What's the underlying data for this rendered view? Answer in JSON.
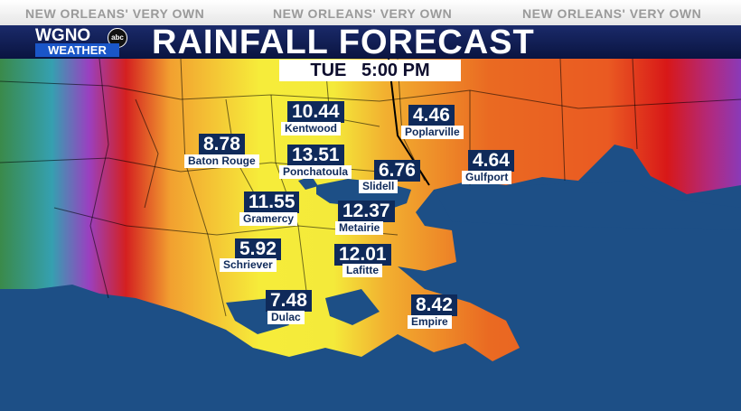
{
  "header": {
    "slogans": [
      "NEW ORLEANS' VERY OWN",
      "NEW ORLEANS' VERY OWN",
      "NEW ORLEANS' VERY OWN"
    ],
    "logo_top": "WGNO",
    "logo_network": "abc",
    "logo_bottom": "WEATHER",
    "title": "RAINFALL FORECAST"
  },
  "time": {
    "day": "TUE",
    "clock": "5:00 PM"
  },
  "colors": {
    "low": "#f4ef3a",
    "mid": "#f2b030",
    "high": "#e86020",
    "very_high": "#d41818",
    "extreme": "#8a2fb8",
    "water": "#1d4f86",
    "label_bg": "#0f2a5a"
  },
  "cities": [
    {
      "name": "Kentwood",
      "value": "10.44"
    },
    {
      "name": "Poplarville",
      "value": "4.46"
    },
    {
      "name": "Baton Rouge",
      "value": "8.78"
    },
    {
      "name": "Ponchatoula",
      "value": "13.51"
    },
    {
      "name": "Slidell",
      "value": "6.76"
    },
    {
      "name": "Gulfport",
      "value": "4.64"
    },
    {
      "name": "Gramercy",
      "value": "11.55"
    },
    {
      "name": "Metairie",
      "value": "12.37"
    },
    {
      "name": "Schriever",
      "value": "5.92"
    },
    {
      "name": "Lafitte",
      "value": "12.01"
    },
    {
      "name": "Dulac",
      "value": "7.48"
    },
    {
      "name": "Empire",
      "value": "8.42"
    }
  ]
}
